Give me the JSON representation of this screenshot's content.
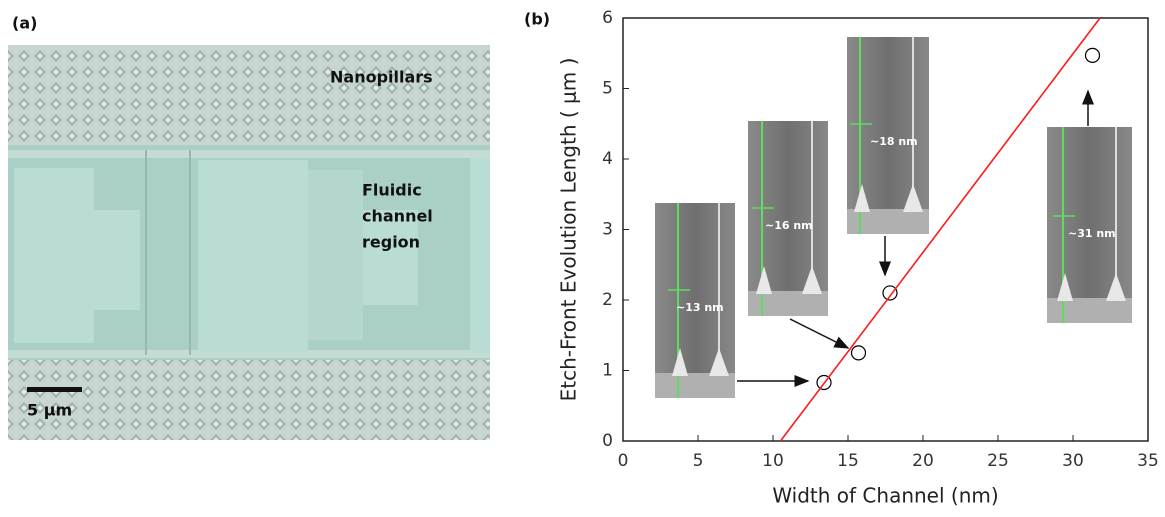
{
  "panel_a": {
    "label": "(a)",
    "annotations": [
      "Nanopillars"
    ],
    "region_label": [
      "Fluidic",
      "channel",
      "region"
    ],
    "scale_bar": "5 μm"
  },
  "chart_data": {
    "type": "scatter",
    "panel_label": "(b)",
    "x_label": "Width of Channel (nm)",
    "y_label": "Etch-Front Evolution Length ( μm )",
    "xlim": [
      0,
      35
    ],
    "ylim": [
      0,
      6
    ],
    "xticks": [
      0,
      5,
      10,
      15,
      20,
      25,
      30,
      35
    ],
    "yticks": [
      0,
      1,
      2,
      3,
      4,
      5,
      6
    ],
    "series": [
      {
        "color": "#000000",
        "x": [
          13.4,
          15.7,
          17.8,
          31.3
        ],
        "values": [
          0.83,
          1.25,
          2.1,
          5.47
        ]
      },
      {
        "type": "line",
        "color": "#ff1a1a",
        "x": [
          10.5,
          31.8
        ],
        "values": [
          0,
          6
        ]
      }
    ],
    "annotations": [
      "~13 nm",
      "~16 nm",
      "~18 nm",
      "~31 nm"
    ]
  }
}
